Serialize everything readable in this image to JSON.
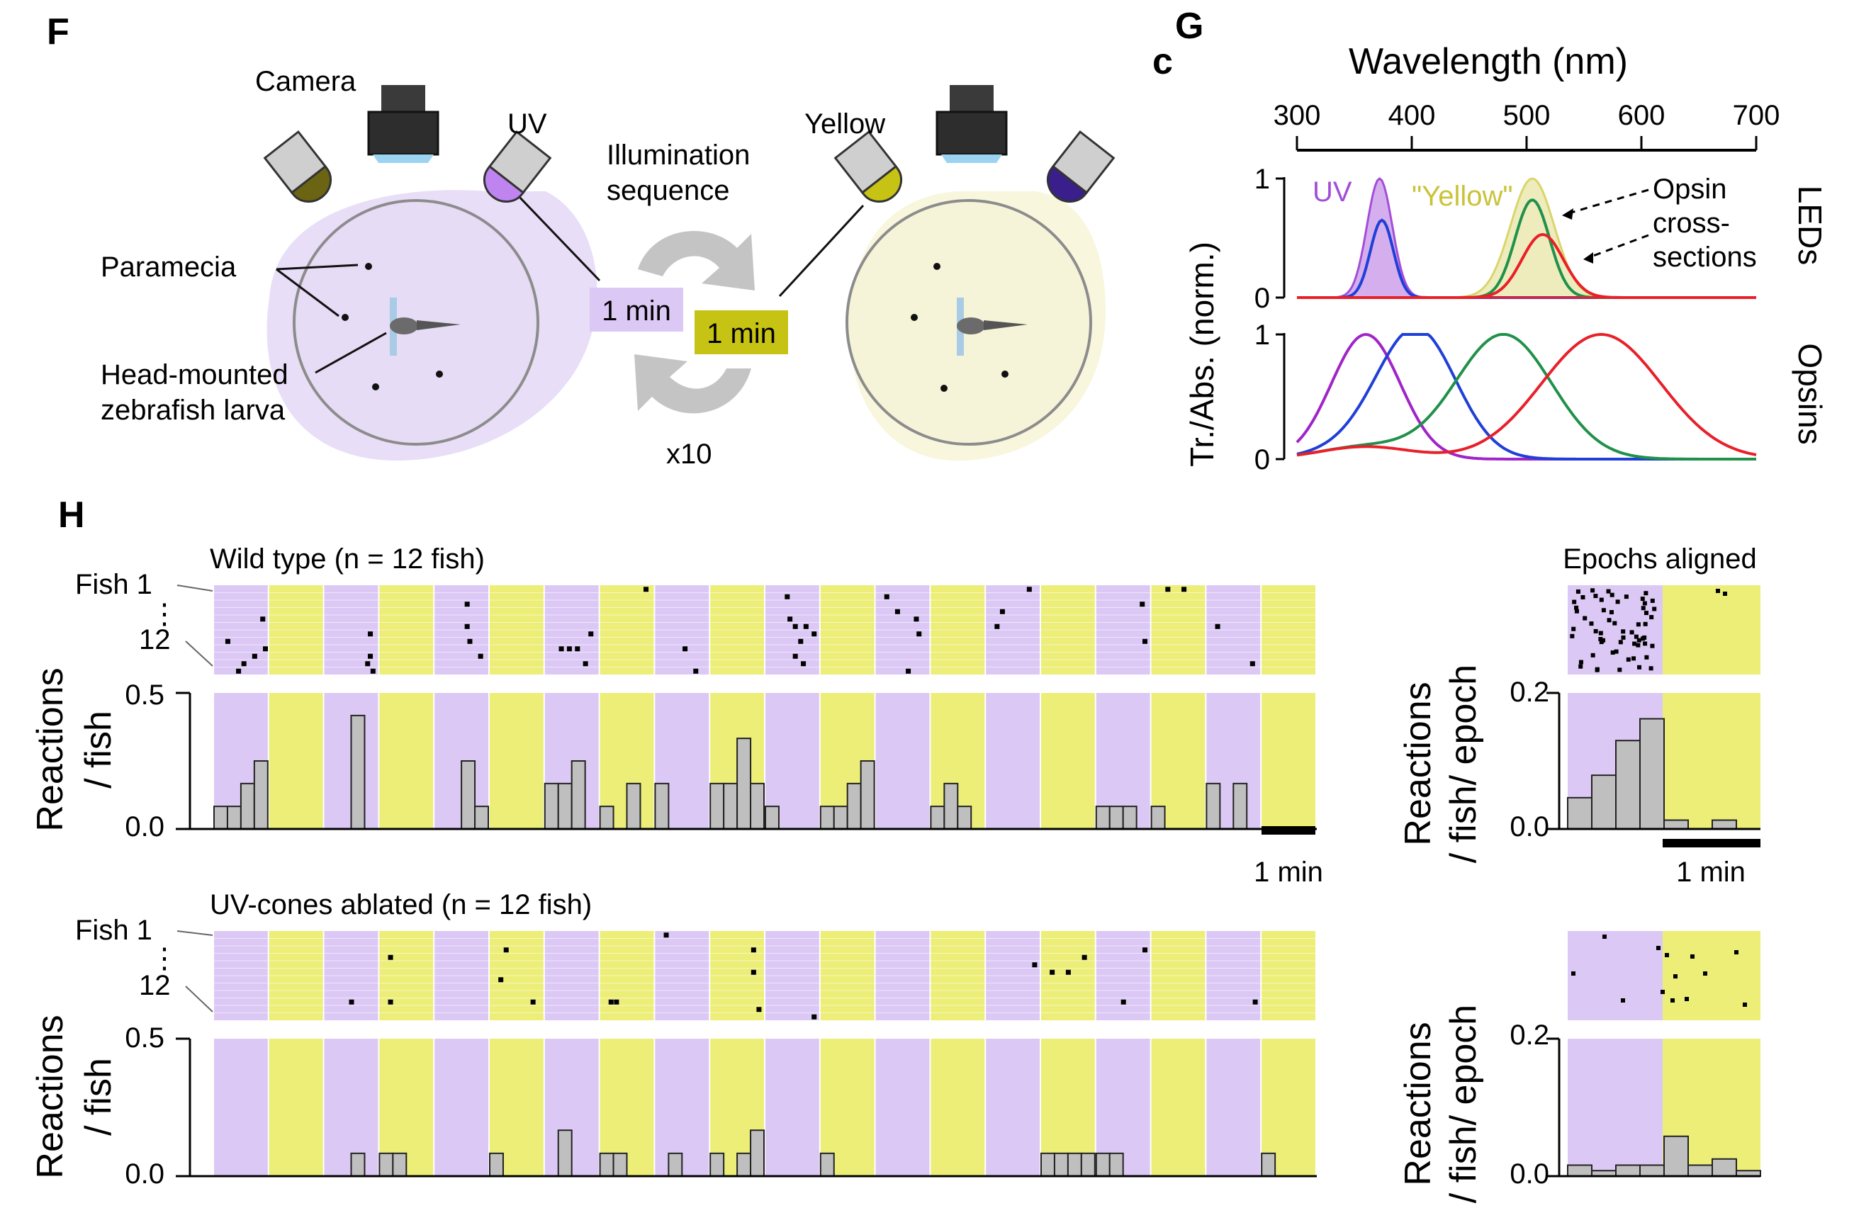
{
  "panel_F": {
    "letter": "F",
    "labels": {
      "camera": "Camera",
      "uv": "UV",
      "yellow": "Yellow",
      "paramecia": "Paramecia",
      "head_mounted_1": "Head-mounted",
      "head_mounted_2": "zebrafish larva",
      "illumination_1": "Illumination",
      "illumination_2": "sequence",
      "uv_duration": "1 min",
      "yellow_duration": "1 min",
      "repeats": "x10"
    },
    "colors": {
      "uv_bg": "#e8def7",
      "yellow_bg": "#f8f6dc",
      "uv_led": "#c084f0",
      "yellow_led": "#c7c314",
      "violet_led": "#3a1f8c",
      "olive_led": "#6b6412"
    }
  },
  "panel_G": {
    "letter": "G",
    "sub_letter": "c",
    "axis_title": "Wavelength (nm)",
    "x_ticks": [
      "300",
      "400",
      "500",
      "600",
      "700"
    ],
    "ylabel": "Tr./Abs. (norm.)",
    "leds_label": "LEDs",
    "opsins_label": "Opsins",
    "uv_label": "UV",
    "yellow_label": "\"Yellow\"",
    "annotation_lines": [
      "Opsin",
      "cross-",
      "sections"
    ],
    "y_tick_labels": [
      "1",
      "0"
    ]
  },
  "panel_H": {
    "letter": "H",
    "scale_label": "1 min",
    "epochs_aligned_title": "Epochs aligned",
    "ylabel_main_1": "Reactions",
    "ylabel_main_2": "/ fish",
    "ylabel_epoch_1": "Reactions",
    "ylabel_epoch_2": "/ fish/ epoch",
    "raster_fish1": "Fish 1",
    "raster_dots": "⋮",
    "raster_fish12": "12",
    "wt_title": "Wild type (n = 12 fish)",
    "uv_title": "UV-cones ablated (n = 12 fish)",
    "main_yticks": [
      "0.5",
      "0.0"
    ],
    "epoch_yticks": [
      "0.2",
      "0.0"
    ],
    "colors": {
      "uv": "#dcc8f5",
      "yellow": "#ecee78",
      "bar": "#bfbfbf"
    }
  },
  "chart_data": [
    {
      "type": "line",
      "panel": "G-LEDs",
      "x_range": [
        300,
        700
      ],
      "y_range": [
        0,
        1
      ],
      "series": [
        {
          "color": "#a24ed8",
          "kind": "led-fill",
          "peak_nm": 372,
          "width_nm": 11,
          "amplitude": 1.0
        },
        {
          "color": "#d9d56a",
          "kind": "led-fill",
          "peak_nm": 505,
          "width_nm": 19,
          "amplitude": 1.0
        },
        {
          "color": "#1f3fd8",
          "peak_nm": 374,
          "width_nm": 10,
          "amplitude": 0.65
        },
        {
          "color": "#20914a",
          "peak_nm": 505,
          "width_nm": 15,
          "amplitude": 0.82
        },
        {
          "color": "#e8202a",
          "peak_nm": 514,
          "width_nm": 18,
          "amplitude": 0.53
        }
      ]
    },
    {
      "type": "line",
      "panel": "G-Opsins",
      "x_range": [
        300,
        700
      ],
      "y_range": [
        0,
        1
      ],
      "series": [
        {
          "color": "#a024c8",
          "peak_nm": 360,
          "amplitude": 1.0
        },
        {
          "color": "#1f3fd8",
          "peak_nm": 405,
          "amplitude": 1.0
        },
        {
          "color": "#20914a",
          "peak_nm": 480,
          "amplitude": 1.0
        },
        {
          "color": "#e8202a",
          "peak_nm": 565,
          "amplitude": 1.0
        }
      ]
    },
    {
      "type": "bar",
      "panel": "H-wild-type",
      "title": "Wild type (n = 12 fish)",
      "ylabel": "Reactions / fish",
      "ylim": [
        0,
        0.5
      ],
      "epochs": 20,
      "bins_per_epoch": 4,
      "values": [
        0.083,
        0.083,
        0.167,
        0.25,
        0,
        0,
        0,
        0,
        0,
        0,
        0.417,
        0,
        0,
        0,
        0,
        0,
        0,
        0,
        0.25,
        0.083,
        0,
        0,
        0,
        0,
        0.167,
        0.167,
        0.25,
        0,
        0.083,
        0,
        0.167,
        0,
        0.167,
        0,
        0,
        0,
        0.167,
        0.167,
        0.333,
        0.167,
        0.083,
        0,
        0,
        0,
        0.083,
        0.083,
        0.167,
        0.25,
        0,
        0,
        0,
        0,
        0.083,
        0.167,
        0.083,
        0,
        0,
        0,
        0,
        0,
        0,
        0,
        0,
        0,
        0.083,
        0.083,
        0.083,
        0,
        0.083,
        0,
        0,
        0,
        0.167,
        0,
        0.167,
        0,
        0,
        0,
        0,
        0
      ]
    },
    {
      "type": "bar",
      "panel": "H-wild-type-epochs-aligned",
      "ylabel": "Reactions / fish/ epoch",
      "ylim": [
        0,
        0.2
      ],
      "values": [
        0.046,
        0.079,
        0.13,
        0.162,
        0.013,
        0,
        0.013,
        0
      ]
    },
    {
      "type": "bar",
      "panel": "H-uv-ablated",
      "title": "UV-cones ablated (n = 12 fish)",
      "ylabel": "Reactions / fish",
      "ylim": [
        0,
        0.5
      ],
      "epochs": 20,
      "bins_per_epoch": 4,
      "values": [
        0,
        0,
        0,
        0,
        0,
        0,
        0,
        0,
        0,
        0,
        0.083,
        0,
        0.083,
        0.083,
        0,
        0,
        0,
        0,
        0,
        0,
        0.083,
        0,
        0,
        0,
        0,
        0.167,
        0,
        0,
        0.083,
        0.083,
        0,
        0,
        0,
        0.083,
        0,
        0,
        0.083,
        0,
        0.083,
        0.167,
        0,
        0,
        0,
        0,
        0.083,
        0,
        0,
        0,
        0,
        0,
        0,
        0,
        0,
        0,
        0,
        0,
        0,
        0,
        0,
        0,
        0.083,
        0.083,
        0.083,
        0.083,
        0.083,
        0.083,
        0,
        0,
        0,
        0,
        0,
        0,
        0,
        0,
        0,
        0,
        0.083,
        0,
        0,
        0
      ]
    },
    {
      "type": "bar",
      "panel": "H-uv-ablated-epochs-aligned",
      "ylabel": "Reactions / fish/ epoch",
      "ylim": [
        0,
        0.2
      ],
      "values": [
        0.016,
        0.008,
        0.016,
        0.016,
        0.058,
        0.016,
        0.025,
        0.008
      ]
    },
    {
      "type": "scatter",
      "panel": "H-wild-type-raster",
      "fish_count": 12,
      "events": [
        [
          0,
          0.25,
          8
        ],
        [
          0,
          0.55,
          11
        ],
        [
          0,
          0.45,
          12
        ],
        [
          0,
          0.9,
          5
        ],
        [
          0,
          0.75,
          10
        ],
        [
          0,
          0.95,
          9
        ],
        [
          2,
          0.85,
          7
        ],
        [
          2,
          0.8,
          11
        ],
        [
          2,
          0.9,
          12
        ],
        [
          2,
          0.85,
          10
        ],
        [
          4,
          0.6,
          3
        ],
        [
          4,
          0.6,
          6
        ],
        [
          4,
          0.65,
          8
        ],
        [
          4,
          0.85,
          10
        ],
        [
          6,
          0.3,
          9
        ],
        [
          6,
          0.45,
          9
        ],
        [
          6,
          0.6,
          9
        ],
        [
          6,
          0.85,
          7
        ],
        [
          6,
          0.75,
          11
        ],
        [
          7,
          0.85,
          1
        ],
        [
          8,
          0.55,
          9
        ],
        [
          8,
          0.75,
          12
        ],
        [
          10,
          0.4,
          2
        ],
        [
          10,
          0.45,
          5
        ],
        [
          10,
          0.55,
          6
        ],
        [
          10,
          0.65,
          8
        ],
        [
          10,
          0.55,
          10
        ],
        [
          10,
          0.7,
          11
        ],
        [
          10,
          0.75,
          6
        ],
        [
          10,
          0.9,
          7
        ],
        [
          12,
          0.2,
          2
        ],
        [
          12,
          0.4,
          4
        ],
        [
          12,
          0.75,
          5
        ],
        [
          12,
          0.8,
          7
        ],
        [
          12,
          0.6,
          12
        ],
        [
          14,
          0.2,
          6
        ],
        [
          14,
          0.3,
          4
        ],
        [
          14,
          0.8,
          1
        ],
        [
          16,
          0.85,
          3
        ],
        [
          16,
          0.9,
          8
        ],
        [
          17,
          0.3,
          1
        ],
        [
          17,
          0.6,
          1
        ],
        [
          18,
          0.2,
          6
        ],
        [
          18,
          0.85,
          11
        ]
      ]
    },
    {
      "type": "scatter",
      "panel": "H-uv-ablated-raster",
      "fish_count": 12,
      "events": [
        [
          2,
          0.5,
          10
        ],
        [
          3,
          0.2,
          4
        ],
        [
          3,
          0.2,
          10
        ],
        [
          5,
          0.2,
          7
        ],
        [
          5,
          0.3,
          3
        ],
        [
          5,
          0.8,
          10
        ],
        [
          7,
          0.2,
          10
        ],
        [
          7,
          0.3,
          10
        ],
        [
          8,
          0.2,
          1
        ],
        [
          9,
          0.8,
          3
        ],
        [
          9,
          0.8,
          6
        ],
        [
          9,
          0.9,
          11
        ],
        [
          10,
          0.9,
          12
        ],
        [
          14,
          0.9,
          5
        ],
        [
          15,
          0.2,
          6
        ],
        [
          15,
          0.5,
          6
        ],
        [
          15,
          0.8,
          4
        ],
        [
          16,
          0.5,
          10
        ],
        [
          16,
          0.9,
          3
        ],
        [
          18,
          0.9,
          10
        ]
      ]
    }
  ]
}
